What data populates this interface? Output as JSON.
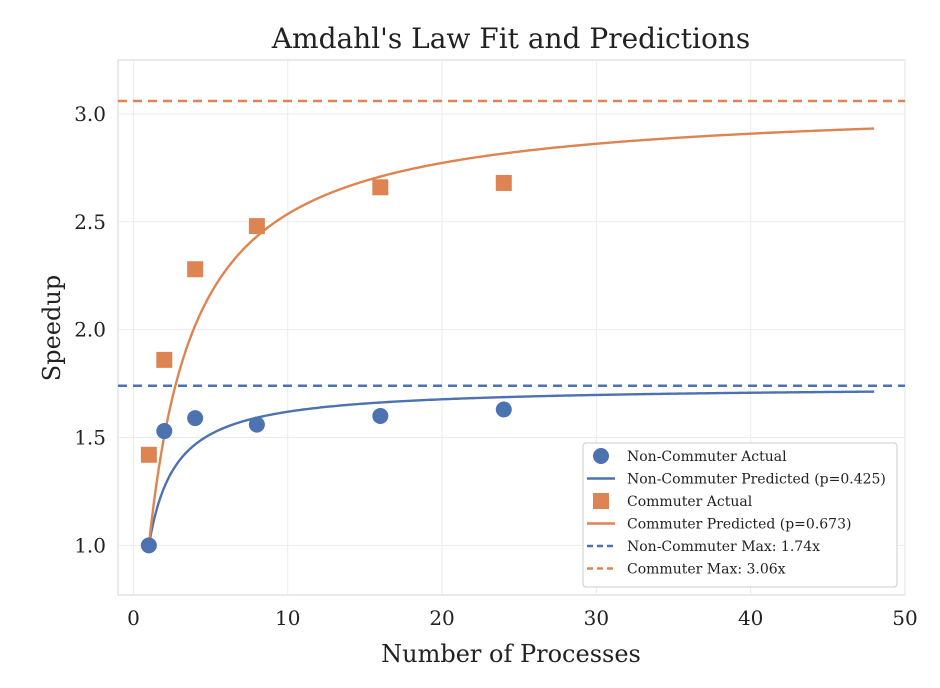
{
  "chart_data": {
    "type": "scatter",
    "title": "Amdahl's Law Fit and Predictions",
    "xlabel": "Number of Processes",
    "ylabel": "Speedup",
    "xlim": [
      -1,
      50
    ],
    "ylim": [
      0.77,
      3.25
    ],
    "xticks": [
      0,
      10,
      20,
      30,
      40,
      50
    ],
    "yticks": [
      1.0,
      1.5,
      2.0,
      2.5,
      3.0
    ],
    "grid": true,
    "legend_position": "lower-right",
    "series": [
      {
        "name": "Non-Commuter Actual",
        "kind": "scatter",
        "marker": "circle",
        "color": "#4c72b0",
        "x": [
          1,
          2,
          4,
          8,
          16,
          24
        ],
        "y": [
          1.0,
          1.53,
          1.59,
          1.56,
          1.6,
          1.63
        ]
      },
      {
        "name": "Non-Commuter Predicted (p=0.425)",
        "kind": "curve",
        "model": "amdahl",
        "p": 0.425,
        "x_range": [
          1,
          48
        ],
        "color": "#4c72b0"
      },
      {
        "name": "Commuter Actual",
        "kind": "scatter",
        "marker": "square",
        "color": "#dd8452",
        "x": [
          1,
          2,
          4,
          8,
          16,
          24
        ],
        "y": [
          1.42,
          1.86,
          2.28,
          2.48,
          2.66,
          2.68
        ]
      },
      {
        "name": "Commuter Predicted (p=0.673)",
        "kind": "curve",
        "model": "amdahl",
        "p": 0.673,
        "x_range": [
          1,
          48
        ],
        "color": "#dd8452"
      },
      {
        "name": "Non-Commuter Max: 1.74x",
        "kind": "hline",
        "y": 1.74,
        "dashed": true,
        "color": "#4c72b0"
      },
      {
        "name": "Commuter Max: 3.06x",
        "kind": "hline",
        "y": 3.06,
        "dashed": true,
        "color": "#dd8452"
      }
    ]
  }
}
